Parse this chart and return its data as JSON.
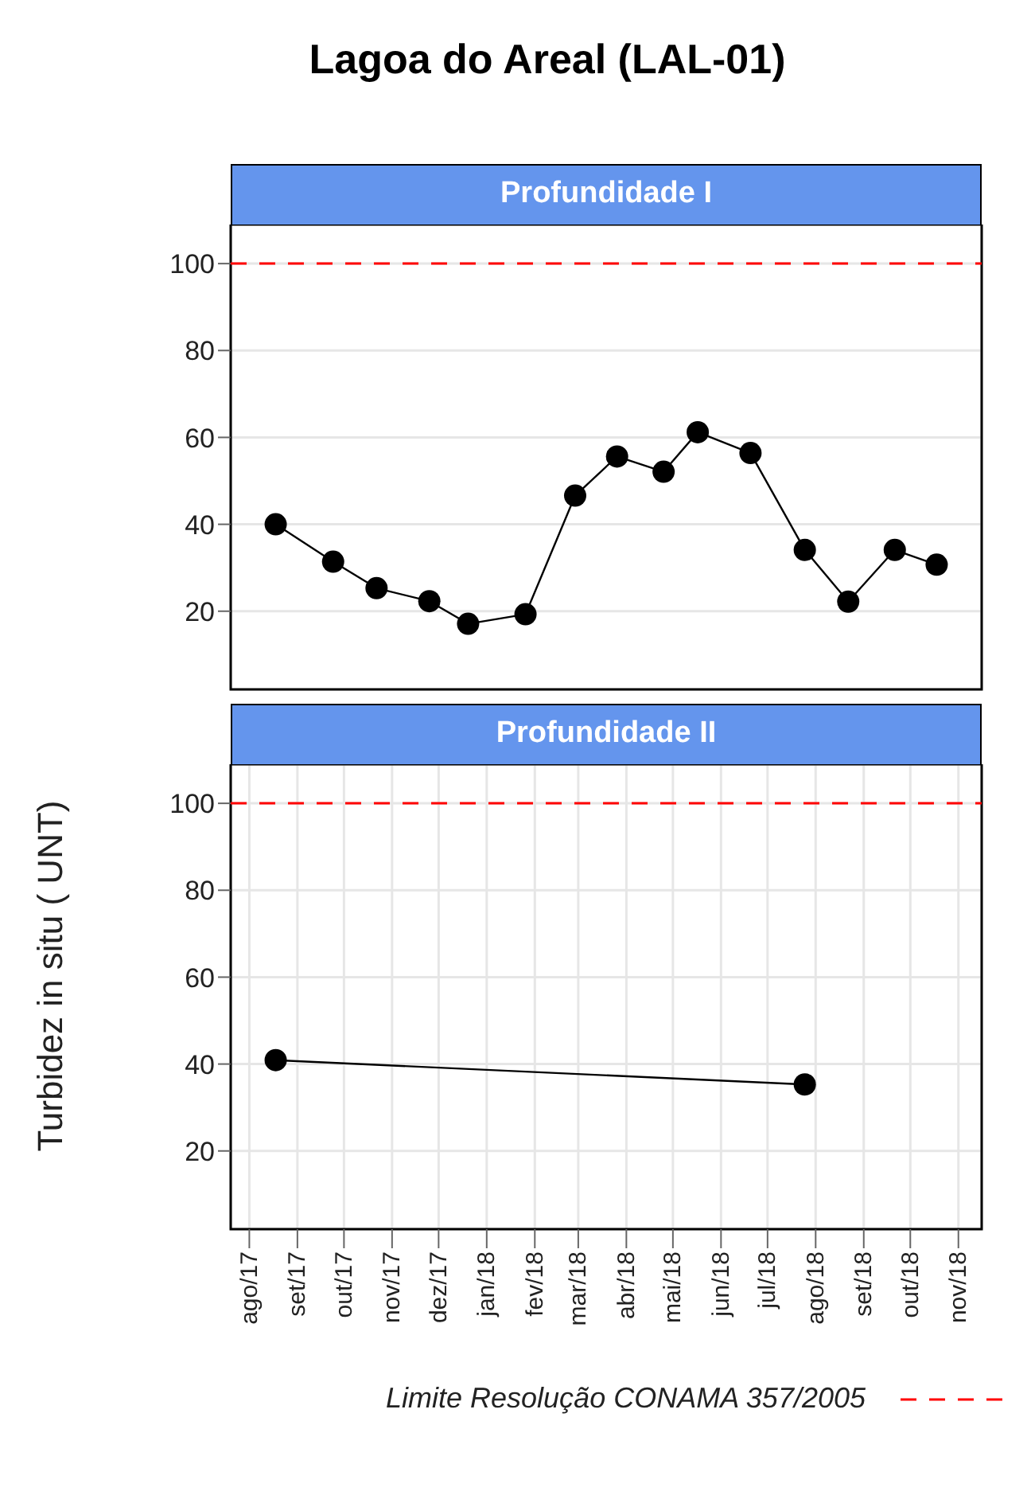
{
  "chart_data": [
    {
      "type": "line",
      "title": "Lagoa do Areal (LAL-01)",
      "subtitle": "Profundidade I",
      "ylabel": "Turbidez in situ ( UNT)",
      "x": [
        "2017-08-18",
        "2017-09-24",
        "2017-10-22",
        "2017-11-25",
        "2017-12-20",
        "2018-01-26",
        "2018-02-27",
        "2018-03-26",
        "2018-04-25",
        "2018-05-17",
        "2018-06-20",
        "2018-07-25",
        "2018-08-22",
        "2018-09-21",
        "2018-10-18"
      ],
      "values": [
        40.0,
        31.4,
        25.3,
        22.3,
        17.1,
        19.3,
        46.6,
        55.6,
        52.1,
        61.2,
        56.4,
        34.1,
        22.2,
        34.1,
        30.7
      ],
      "color": "#000000",
      "marker": "circle",
      "line_style": "solid",
      "xlim": [
        "2017-07-20",
        "2018-11-16"
      ],
      "xticks": [
        {
          "value": "2017-08",
          "label": null
        },
        {
          "value": "2017-09",
          "label": null
        },
        {
          "value": "2017-10",
          "label": null
        },
        {
          "value": "2017-11",
          "label": null
        },
        {
          "value": "2017-12",
          "label": null
        },
        {
          "value": "2018-01",
          "label": null
        },
        {
          "value": "2018-02",
          "label": null
        },
        {
          "value": "2018-03",
          "label": null
        },
        {
          "value": "2018-04",
          "label": null
        },
        {
          "value": "2018-05",
          "label": null
        },
        {
          "value": "2018-06",
          "label": null
        },
        {
          "value": "2018-07",
          "label": null
        },
        {
          "value": "2018-08",
          "label": null
        },
        {
          "value": "2018-09",
          "label": null
        },
        {
          "value": "2018-10",
          "label": null
        },
        {
          "value": "2018-11",
          "label": null
        }
      ],
      "ylim": [
        2,
        109
      ],
      "yticks": [
        20,
        40,
        60,
        80,
        100
      ],
      "grid": true,
      "tick_labels": "y",
      "ref_lines": [
        {
          "axis": "y",
          "value": 100,
          "color": "#ff0000",
          "line_style": "dashed"
        }
      ]
    },
    {
      "type": "line",
      "subtitle": "Profundidade II",
      "x": [
        "2017-08-18",
        "2018-07-25"
      ],
      "values": [
        40.9,
        35.3
      ],
      "color": "#000000",
      "marker": "circle",
      "line_style": "solid",
      "xlim": [
        "2017-07-20",
        "2018-11-16"
      ],
      "xticks": [
        {
          "value": "2017-08",
          "label": "ago/17"
        },
        {
          "value": "2017-09",
          "label": "set/17"
        },
        {
          "value": "2017-10",
          "label": "out/17"
        },
        {
          "value": "2017-11",
          "label": "nov/17"
        },
        {
          "value": "2017-12",
          "label": "dez/17"
        },
        {
          "value": "2018-01",
          "label": "jan/18"
        },
        {
          "value": "2018-02",
          "label": "fev/18"
        },
        {
          "value": "2018-03",
          "label": "mar/18"
        },
        {
          "value": "2018-04",
          "label": "abr/18"
        },
        {
          "value": "2018-05",
          "label": "mai/18"
        },
        {
          "value": "2018-06",
          "label": "jun/18"
        },
        {
          "value": "2018-07",
          "label": "jul/18"
        },
        {
          "value": "2018-08",
          "label": "ago/18"
        },
        {
          "value": "2018-09",
          "label": "set/18"
        },
        {
          "value": "2018-10",
          "label": "out/18"
        },
        {
          "value": "2018-11",
          "label": "nov/18"
        }
      ],
      "ylim": [
        2,
        109
      ],
      "yticks": [
        20,
        40,
        60,
        80,
        100
      ],
      "grid": true,
      "legend": "bottom",
      "ref_lines": [
        {
          "axis": "y",
          "value": 100,
          "label": "Limite Resolução CONAMA 357/2005",
          "color": "#ff0000",
          "line_style": "dashed"
        }
      ]
    }
  ]
}
